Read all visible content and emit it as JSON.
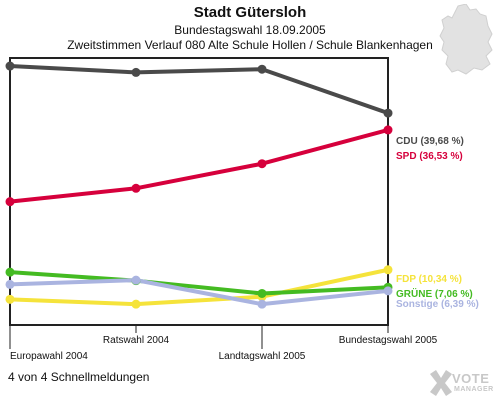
{
  "header": {
    "title": "Stadt Gütersloh",
    "subtitle": "Bundestagswahl 18.09.2005",
    "subtitle2": "Zweitstimmen Verlauf 080 Alte Schule Hollen / Schule Blankenhagen"
  },
  "footer": {
    "status": "4 von 4 Schnellmeldungen",
    "logo_line1": "VOTE",
    "logo_line2": "MANAGER"
  },
  "chart_data": {
    "type": "line",
    "title": "Stadt Gütersloh",
    "subtitle": "Zweitstimmen Verlauf 080 Alte Schule Hollen / Schule Blankenhagen",
    "categories": [
      "Europawahl 2004",
      "Ratswahl 2004",
      "Landtagswahl 2005",
      "Bundestagswahl 2005"
    ],
    "ylim": [
      0,
      50
    ],
    "grid": false,
    "legend": "right",
    "series": [
      {
        "name": "CDU",
        "label": "CDU (39,68 %)",
        "color": "#4a4a4a",
        "values": [
          48.5,
          47.3,
          47.9,
          39.68
        ]
      },
      {
        "name": "SPD",
        "label": "SPD (36,53 %)",
        "color": "#d6003c",
        "values": [
          23.1,
          25.6,
          30.2,
          36.53
        ]
      },
      {
        "name": "FDP",
        "label": "FDP (10,34 %)",
        "color": "#f5e33b",
        "values": [
          4.8,
          3.9,
          5.3,
          10.34
        ]
      },
      {
        "name": "GRÜNE",
        "label": "GRÜNE (7,06 %)",
        "color": "#44bb22",
        "values": [
          9.9,
          8.3,
          5.9,
          7.06
        ]
      },
      {
        "name": "Sonstige",
        "label": "Sonstige (6,39 %)",
        "color": "#aab4e0",
        "values": [
          7.6,
          8.4,
          3.9,
          6.39
        ]
      }
    ]
  }
}
